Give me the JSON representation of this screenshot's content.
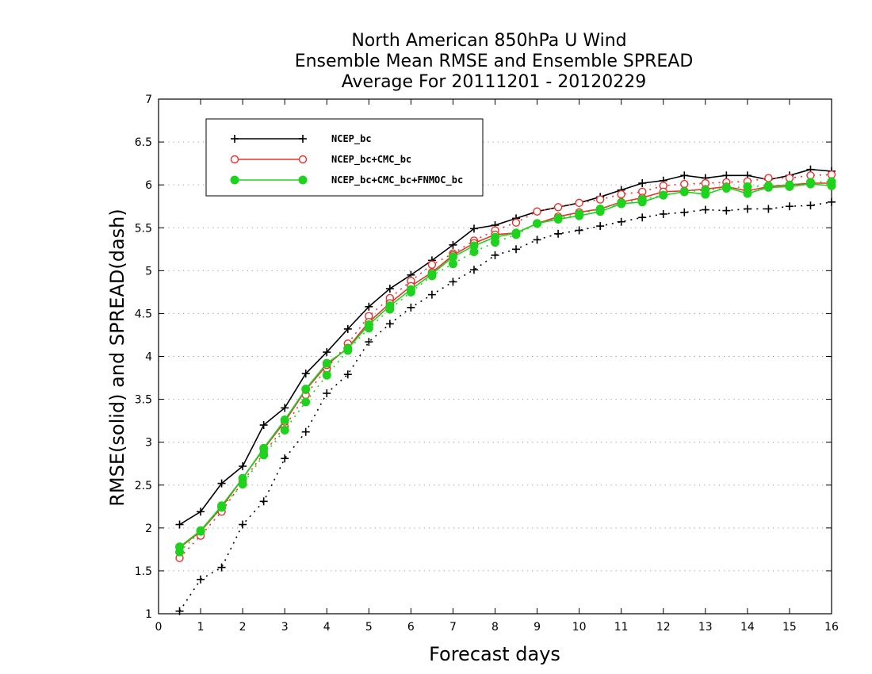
{
  "chart_data": {
    "type": "line",
    "title": [
      "North American 850hPa U Wind",
      "Ensemble Mean RMSE and Ensemble SPREAD",
      "Average For 20111201 - 20120229"
    ],
    "xlabel": "Forecast days",
    "ylabel": "RMSE(solid) and SPREAD(dash)",
    "xlim": [
      0,
      16
    ],
    "ylim": [
      1,
      7
    ],
    "xticks": [
      "0",
      "1",
      "2",
      "3",
      "4",
      "5",
      "6",
      "7",
      "8",
      "9",
      "10",
      "11",
      "12",
      "13",
      "14",
      "15",
      "16"
    ],
    "yticks": [
      "1",
      "1.5",
      "2",
      "2.5",
      "3",
      "3.5",
      "4",
      "4.5",
      "5",
      "5.5",
      "6",
      "6.5",
      "7"
    ],
    "grid": "horizontal dotted",
    "legend_position": "top-left",
    "x": [
      0.5,
      1,
      1.5,
      2,
      2.5,
      3,
      3.5,
      4,
      4.5,
      5,
      5.5,
      6,
      6.5,
      7,
      7.5,
      8,
      8.5,
      9,
      9.5,
      10,
      10.5,
      11,
      11.5,
      12,
      12.5,
      13,
      13.5,
      14,
      14.5,
      15,
      15.5,
      16
    ],
    "series": [
      {
        "name": "NCEP_bc",
        "color": "#000000",
        "marker": "plus",
        "rmse": [
          2.04,
          2.19,
          2.52,
          2.72,
          3.2,
          3.4,
          3.8,
          4.05,
          4.32,
          4.58,
          4.79,
          4.95,
          5.12,
          5.3,
          5.49,
          5.53,
          5.61,
          5.69,
          5.74,
          5.79,
          5.86,
          5.94,
          6.02,
          6.05,
          6.11,
          6.08,
          6.11,
          6.11,
          6.06,
          6.11,
          6.18,
          6.16
        ],
        "spread": [
          1.03,
          1.4,
          1.54,
          2.04,
          2.31,
          2.81,
          3.12,
          3.57,
          3.79,
          4.17,
          4.38,
          4.57,
          4.72,
          4.87,
          5.01,
          5.18,
          5.25,
          5.36,
          5.43,
          5.47,
          5.52,
          5.57,
          5.62,
          5.66,
          5.68,
          5.71,
          5.7,
          5.72,
          5.72,
          5.75,
          5.76,
          5.8
        ]
      },
      {
        "name": "NCEP_bc+CMC_bc",
        "color": "#e8322e",
        "marker": "open-circle",
        "rmse": [
          1.77,
          1.96,
          2.24,
          2.58,
          2.92,
          3.24,
          3.61,
          3.9,
          4.1,
          4.4,
          4.62,
          4.82,
          4.98,
          5.18,
          5.32,
          5.42,
          5.44,
          5.55,
          5.63,
          5.68,
          5.72,
          5.8,
          5.85,
          5.92,
          5.93,
          5.95,
          5.98,
          5.93,
          5.98,
          6.0,
          6.02,
          6.02
        ],
        "spread": [
          1.65,
          1.91,
          2.19,
          2.54,
          2.87,
          3.18,
          3.55,
          3.86,
          4.15,
          4.47,
          4.68,
          4.88,
          5.07,
          5.2,
          5.35,
          5.47,
          5.56,
          5.69,
          5.74,
          5.79,
          5.83,
          5.89,
          5.92,
          5.99,
          6.01,
          6.02,
          6.03,
          6.04,
          6.08,
          6.08,
          6.11,
          6.12
        ]
      },
      {
        "name": "NCEP_bc+CMC_bc+FNMOC_bc",
        "color": "#1ed31e",
        "marker": "filled-circle",
        "rmse": [
          1.78,
          1.97,
          2.26,
          2.58,
          2.93,
          3.26,
          3.62,
          3.92,
          4.09,
          4.37,
          4.59,
          4.78,
          4.96,
          5.16,
          5.29,
          5.39,
          5.44,
          5.55,
          5.6,
          5.64,
          5.69,
          5.78,
          5.8,
          5.88,
          5.92,
          5.89,
          5.97,
          5.9,
          5.97,
          5.98,
          6.01,
          5.99
        ],
        "spread": [
          1.72,
          1.96,
          2.24,
          2.51,
          2.85,
          3.14,
          3.47,
          3.78,
          4.07,
          4.33,
          4.55,
          4.75,
          4.94,
          5.08,
          5.22,
          5.33,
          5.42,
          5.55,
          5.61,
          5.66,
          5.72,
          5.79,
          5.83,
          5.88,
          5.92,
          5.94,
          5.96,
          5.98,
          5.99,
          6.0,
          6.03,
          6.04
        ]
      }
    ]
  }
}
